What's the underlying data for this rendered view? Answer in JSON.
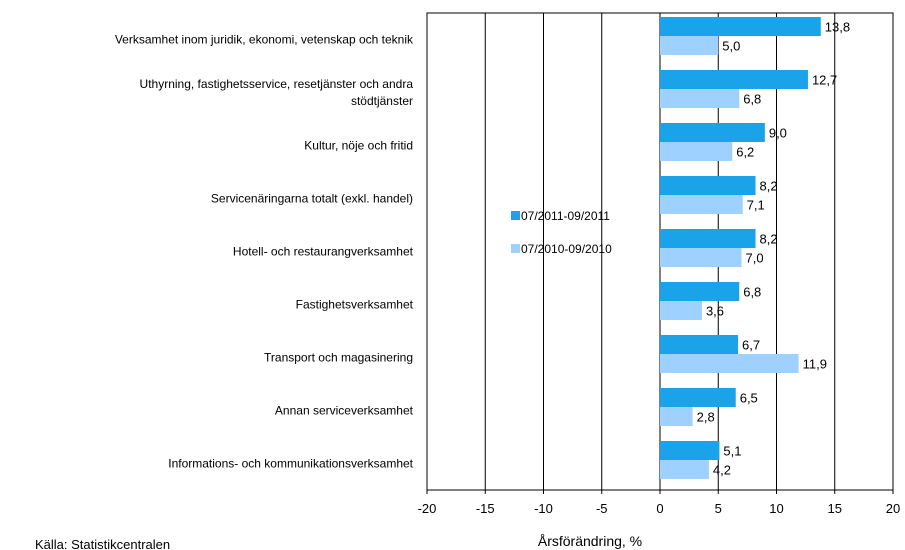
{
  "chart_data": {
    "type": "bar",
    "orientation": "horizontal",
    "categories": [
      [
        "Verksamhet inom juridik, ekonomi, vetenskap och teknik"
      ],
      [
        "Uthyrning, fastighetsservice, resetjänster och andra",
        "stödtjänster"
      ],
      [
        "Kultur, nöje och fritid"
      ],
      [
        "Servicenäringarna totalt (exkl. handel)"
      ],
      [
        "Hotell- och restaurangverksamhet"
      ],
      [
        "Fastighetsverksamhet"
      ],
      [
        "Transport och magasinering"
      ],
      [
        "Annan serviceverksamhet"
      ],
      [
        "Informations- och kommunikationsverksamhet"
      ]
    ],
    "series": [
      {
        "name": "07/2011-09/2011",
        "color": "#1aa3e8",
        "values": [
          13.8,
          12.7,
          9.0,
          8.2,
          8.2,
          6.8,
          6.7,
          6.5,
          5.1
        ],
        "labels": [
          "13,8",
          "12,7",
          "9,0",
          "8,2",
          "8,2",
          "6,8",
          "6,7",
          "6,5",
          "5,1"
        ]
      },
      {
        "name": "07/2010-09/2010",
        "color": "#9fd1ff",
        "values": [
          5.0,
          6.8,
          6.2,
          7.1,
          7.0,
          3.6,
          11.9,
          2.8,
          4.2
        ],
        "labels": [
          "5,0",
          "6,8",
          "6,2",
          "7,1",
          "7,0",
          "3,6",
          "11,9",
          "2,8",
          "4,2"
        ]
      }
    ],
    "xlim": [
      -20,
      20
    ],
    "xticks": [
      -20,
      -15,
      -10,
      -5,
      0,
      5,
      10,
      15,
      20
    ],
    "xtick_labels": [
      "-20",
      "-15",
      "-10",
      "-5",
      "0",
      "5",
      "10",
      "15",
      "20"
    ],
    "xlabel": "Årsförändring, %",
    "grid": "vertical",
    "legend_position": "left"
  },
  "source": "Källa: Statistikcentralen"
}
